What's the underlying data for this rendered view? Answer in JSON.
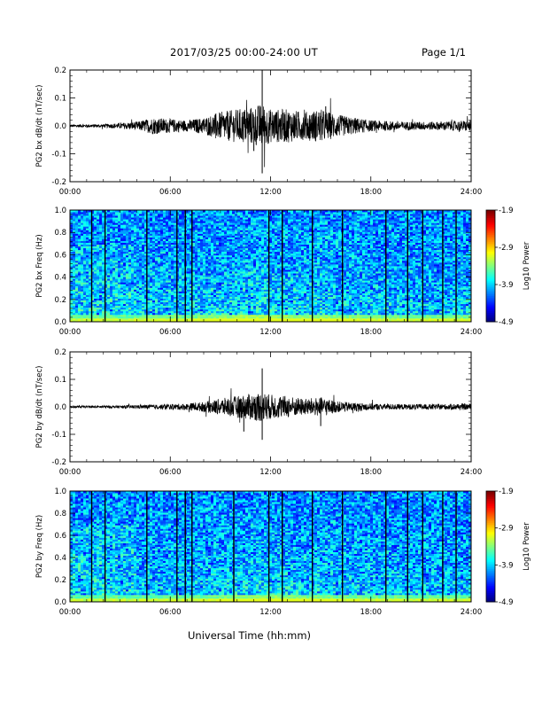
{
  "header": {
    "title": "2017/03/25  00:00-24:00 UT",
    "page": "Page 1/1"
  },
  "x_axis_title": "Universal Time (hh:mm)",
  "colorbar": {
    "label": "Log10 Power",
    "ticks": [
      "-1.9",
      "-2.9",
      "-3.9",
      "-4.9"
    ]
  },
  "colors": {
    "trace": "#000000",
    "spectrogram_floor": "#1a2fd8",
    "spectrogram_high": "#30e0e0"
  },
  "chart_data": [
    {
      "type": "line",
      "ylabel": "PG2 bx dB/dt (nT/sec)",
      "xlim": [
        0,
        24
      ],
      "ylim": [
        -0.2,
        0.2
      ],
      "x_ticks": [
        "00:00",
        "06:00",
        "12:00",
        "18:00",
        "24:00"
      ],
      "y_ticks": [
        "-0.2",
        "-0.1",
        "0.0",
        "0.1",
        "0.2"
      ],
      "envelope": [
        [
          0,
          0.005
        ],
        [
          2,
          0.006
        ],
        [
          4,
          0.015
        ],
        [
          5,
          0.03
        ],
        [
          6,
          0.025
        ],
        [
          7,
          0.02
        ],
        [
          8,
          0.03
        ],
        [
          9,
          0.05
        ],
        [
          10,
          0.06
        ],
        [
          11,
          0.07
        ],
        [
          11.5,
          0.08
        ],
        [
          12,
          0.06
        ],
        [
          13,
          0.06
        ],
        [
          14,
          0.05
        ],
        [
          15,
          0.06
        ],
        [
          16,
          0.04
        ],
        [
          18,
          0.02
        ],
        [
          20,
          0.015
        ],
        [
          22,
          0.015
        ],
        [
          24,
          0.02
        ]
      ],
      "peaks": [
        [
          11.5,
          0.2
        ],
        [
          11.5,
          -0.17
        ],
        [
          15.3,
          0.07
        ],
        [
          11.0,
          -0.09
        ]
      ]
    },
    {
      "type": "heatmap",
      "ylabel": "PG2 bx Freq (Hz)",
      "xlim": [
        0,
        24
      ],
      "ylim": [
        0,
        1
      ],
      "x_ticks": [
        "00:00",
        "06:00",
        "12:00",
        "18:00",
        "24:00"
      ],
      "y_ticks": [
        "0.0",
        "0.2",
        "0.4",
        "0.6",
        "0.8",
        "1.0"
      ],
      "color_range": [
        -4.9,
        -1.9
      ],
      "vertical_lines": [
        1.3,
        2.1,
        4.6,
        6.4,
        6.9,
        7.3,
        11.9,
        12.7,
        14.5,
        16.3,
        18.9,
        20.2,
        21.1,
        22.3,
        23.1
      ]
    },
    {
      "type": "line",
      "ylabel": "PG2 by dB/dt (nT/sec)",
      "xlim": [
        0,
        24
      ],
      "ylim": [
        -0.2,
        0.2
      ],
      "x_ticks": [
        "00:00",
        "06:00",
        "12:00",
        "18:00",
        "24:00"
      ],
      "y_ticks": [
        "-0.2",
        "-0.1",
        "0.0",
        "0.1",
        "0.2"
      ],
      "envelope": [
        [
          0,
          0.004
        ],
        [
          3,
          0.005
        ],
        [
          5,
          0.008
        ],
        [
          7,
          0.012
        ],
        [
          8,
          0.018
        ],
        [
          9,
          0.03
        ],
        [
          10,
          0.04
        ],
        [
          11,
          0.05
        ],
        [
          11.5,
          0.055
        ],
        [
          12,
          0.045
        ],
        [
          13,
          0.04
        ],
        [
          14,
          0.03
        ],
        [
          15,
          0.035
        ],
        [
          16,
          0.02
        ],
        [
          18,
          0.012
        ],
        [
          20,
          0.01
        ],
        [
          22,
          0.01
        ],
        [
          24,
          0.012
        ]
      ],
      "peaks": [
        [
          11.5,
          0.14
        ],
        [
          11.5,
          -0.12
        ],
        [
          10.4,
          -0.09
        ],
        [
          15.0,
          -0.07
        ]
      ]
    },
    {
      "type": "heatmap",
      "ylabel": "PG2 by Freq (Hz)",
      "xlim": [
        0,
        24
      ],
      "ylim": [
        0,
        1
      ],
      "x_ticks": [
        "00:00",
        "06:00",
        "12:00",
        "18:00",
        "24:00"
      ],
      "y_ticks": [
        "0.0",
        "0.2",
        "0.4",
        "0.6",
        "0.8",
        "1.0"
      ],
      "color_range": [
        -4.9,
        -1.9
      ],
      "vertical_lines": [
        1.3,
        2.1,
        4.6,
        6.4,
        6.9,
        7.3,
        9.8,
        11.9,
        12.7,
        14.5,
        16.3,
        18.9,
        20.2,
        21.1,
        22.3,
        23.1
      ]
    }
  ]
}
